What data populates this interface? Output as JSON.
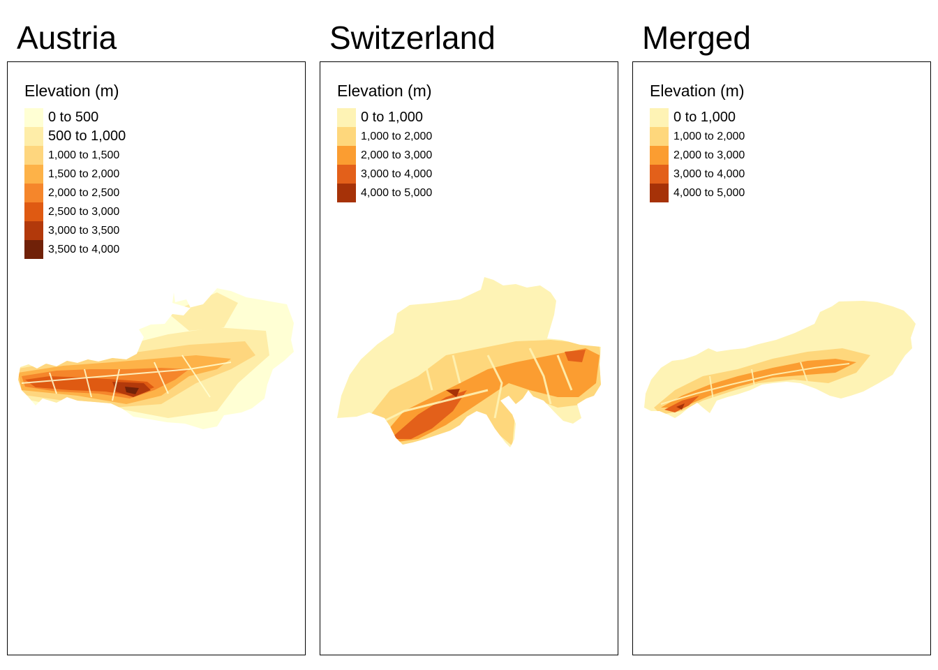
{
  "panels": [
    {
      "title": "Austria",
      "legend_title": "Elevation (m)",
      "classes": [
        {
          "label": "0 to 500",
          "color": "#FFFFD4"
        },
        {
          "label": "500 to 1,000",
          "color": "#FEEDA8"
        },
        {
          "label": "1,000 to 1,500",
          "color": "#FED67E"
        },
        {
          "label": "1,500 to 2,000",
          "color": "#FDB248"
        },
        {
          "label": "2,000 to 2,500",
          "color": "#F5862B"
        },
        {
          "label": "2,500 to 3,000",
          "color": "#DF5A12"
        },
        {
          "label": "3,000 to 3,500",
          "color": "#B2390B"
        },
        {
          "label": "3,500 to 4,000",
          "color": "#702108"
        }
      ]
    },
    {
      "title": "Switzerland",
      "legend_title": "Elevation (m)",
      "classes": [
        {
          "label": "0 to 1,000",
          "color": "#FEF3B5"
        },
        {
          "label": "1,000 to 2,000",
          "color": "#FED77C"
        },
        {
          "label": "2,000 to 3,000",
          "color": "#FB9D31"
        },
        {
          "label": "3,000 to 4,000",
          "color": "#E3601A"
        },
        {
          "label": "4,000 to 5,000",
          "color": "#A63208"
        }
      ]
    },
    {
      "title": "Merged",
      "legend_title": "Elevation (m)",
      "classes": [
        {
          "label": "0 to 1,000",
          "color": "#FEF3B5"
        },
        {
          "label": "1,000 to 2,000",
          "color": "#FED77C"
        },
        {
          "label": "2,000 to 3,000",
          "color": "#FB9D31"
        },
        {
          "label": "3,000 to 4,000",
          "color": "#E3601A"
        },
        {
          "label": "4,000 to 5,000",
          "color": "#A63208"
        }
      ]
    }
  ]
}
